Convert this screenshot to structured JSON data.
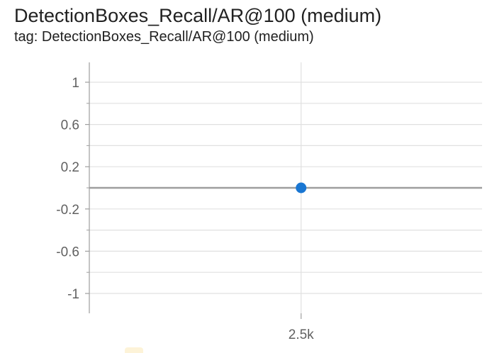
{
  "card": {
    "title": "DetectionBoxes_Recall/AR@100 (medium)",
    "tag": "tag: DetectionBoxes_Recall/AR@100 (medium)"
  },
  "colors": {
    "grid": "#e0e0e0",
    "axis": "#9e9e9e",
    "series_line": "#9e9e9e",
    "point": "#1976d2",
    "text": "#212121",
    "tick_text": "#616161"
  },
  "chart_data": {
    "type": "line",
    "title": "DetectionBoxes_Recall/AR@100 (medium)",
    "xlabel": "",
    "ylabel": "",
    "x_ticks": [
      {
        "value": 2500,
        "label": "2.5k"
      }
    ],
    "y_ticks": [
      {
        "value": 1,
        "label": "1"
      },
      {
        "value": 0.6,
        "label": "0.6"
      },
      {
        "value": 0.2,
        "label": "0.2"
      },
      {
        "value": -0.2,
        "label": "-0.2"
      },
      {
        "value": -0.6,
        "label": "-0.6"
      },
      {
        "value": -1,
        "label": "-1"
      }
    ],
    "y_minor_ticks": [
      0.8,
      0.4,
      0,
      -0.4,
      -0.8
    ],
    "ylim": [
      -1.2,
      1.2
    ],
    "xlim": [
      1400,
      3440
    ],
    "grid": true,
    "series": [
      {
        "x": [
          2500
        ],
        "y": [
          0
        ]
      }
    ]
  }
}
